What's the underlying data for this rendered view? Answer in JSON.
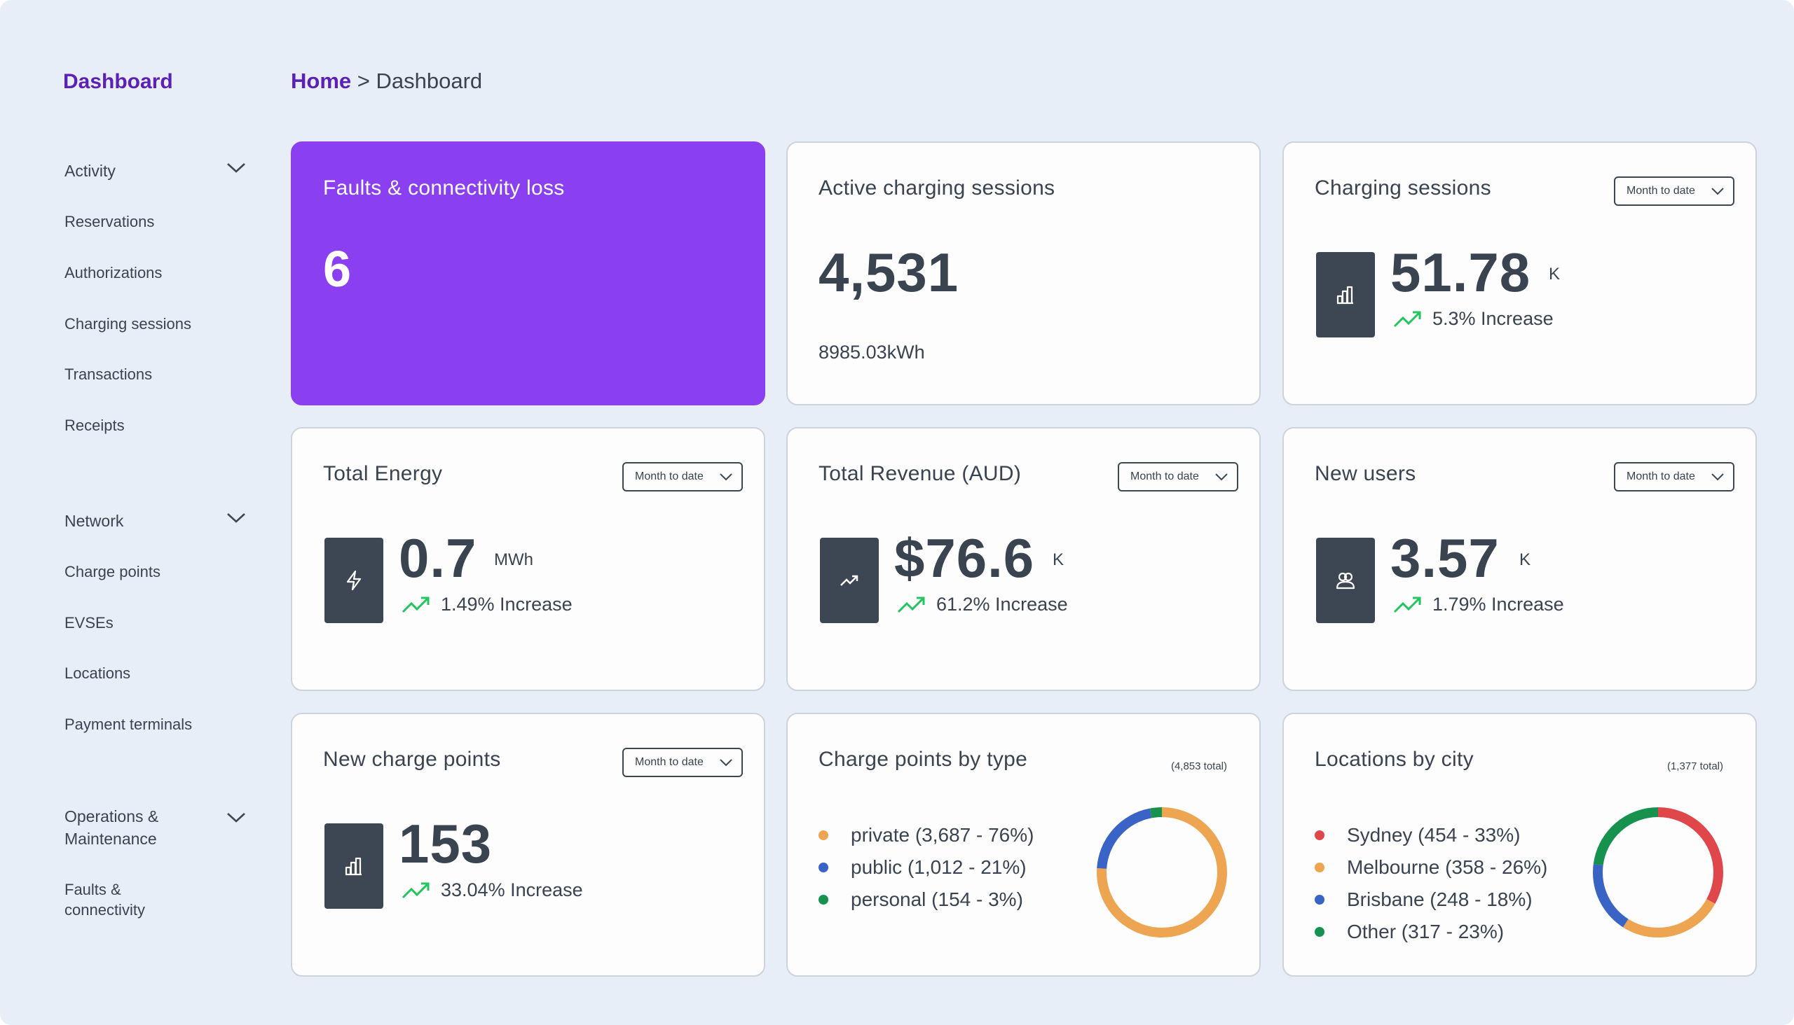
{
  "sidebar": {
    "brand": "Dashboard",
    "groups": [
      {
        "label": "Activity",
        "items": [
          "Reservations",
          "Authorizations",
          "Charging sessions",
          "Transactions",
          "Receipts"
        ]
      },
      {
        "label": "Network",
        "items": [
          "Charge points",
          "EVSEs",
          "Locations",
          "Payment terminals"
        ]
      },
      {
        "label_line1": "Operations &",
        "label_line2": "Maintenance",
        "items_line1": "Faults &",
        "items_line2": "connectivity"
      }
    ]
  },
  "breadcrumb": {
    "home": "Home",
    "separator": " > ",
    "current": "Dashboard"
  },
  "cards": {
    "faults": {
      "title": "Faults & connectivity loss",
      "value": "6"
    },
    "active": {
      "title": "Active charging sessions",
      "value": "4,531",
      "sub": "8985.03kWh"
    },
    "sessions": {
      "title": "Charging sessions",
      "dropdown": "Month to date",
      "value": "51.78",
      "unit": "K",
      "trend": "5.3% Increase"
    },
    "energy": {
      "title": "Total Energy",
      "dropdown": "Month to date",
      "value": "0.7",
      "unit": "MWh",
      "trend": "1.49% Increase"
    },
    "revenue": {
      "title": "Total Revenue (AUD)",
      "dropdown": "Month to date",
      "value": "$76.6",
      "unit": "K",
      "trend": "61.2% Increase"
    },
    "users": {
      "title": "New users",
      "dropdown": "Month to date",
      "value": "3.57",
      "unit": "K",
      "trend": "1.79% Increase"
    },
    "charge_points": {
      "title": "New charge points",
      "dropdown": "Month to date",
      "value": "153",
      "trend": "33.04% Increase"
    },
    "by_type": {
      "title": "Charge points by type",
      "total": "(4,853 total)",
      "legend": [
        "private (3,687 - 76%)",
        "public (1,012 - 21%)",
        "personal (154 - 3%)"
      ],
      "segments": [
        {
          "name": "private",
          "percent": 76,
          "color": "#eda552"
        },
        {
          "name": "public",
          "percent": 21,
          "color": "#3a63c6"
        },
        {
          "name": "personal",
          "percent": 3,
          "color": "#17924e"
        }
      ]
    },
    "by_city": {
      "title": "Locations by city",
      "total": "(1,377 total)",
      "legend": [
        "Sydney (454 - 33%)",
        "Melbourne (358 - 26%)",
        "Brisbane (248 - 18%)",
        "Other (317 - 23%)"
      ],
      "segments": [
        {
          "name": "Sydney",
          "percent": 33,
          "color": "#e0474b"
        },
        {
          "name": "Melbourne",
          "percent": 26,
          "color": "#eda552"
        },
        {
          "name": "Brisbane",
          "percent": 18,
          "color": "#3a63c6"
        },
        {
          "name": "Other",
          "percent": 23,
          "color": "#17924e"
        }
      ]
    }
  },
  "colors": {
    "accent": "#5b21b6",
    "primary_card": "#8a3ff0",
    "trend_up": "#22c55e",
    "icon_box": "#3c4753"
  }
}
